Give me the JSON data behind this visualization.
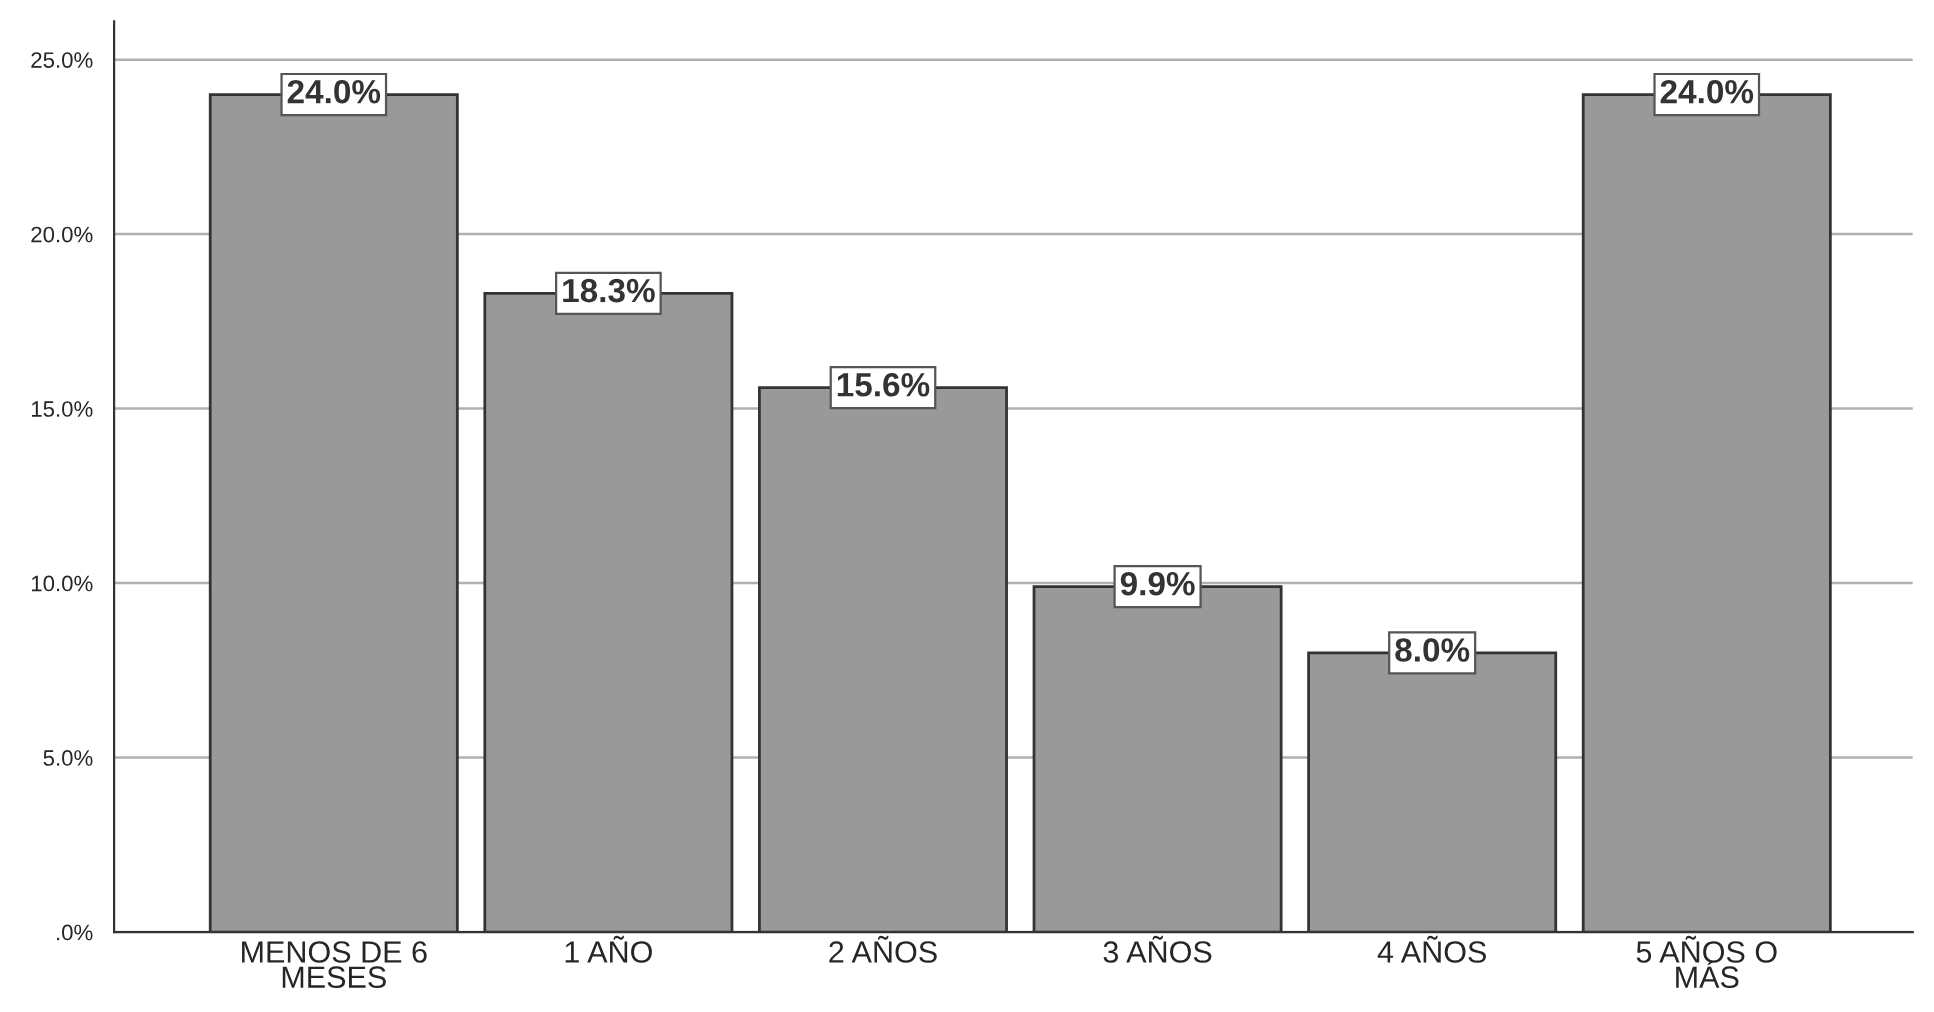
{
  "chart_data": {
    "type": "bar",
    "categories": [
      "MENOS DE 6\nMESES",
      "1 AÑO",
      "2 AÑOS",
      "3 AÑOS",
      "4 AÑOS",
      "5 AÑOS O\nMÁS"
    ],
    "values": [
      24.0,
      18.3,
      15.6,
      9.9,
      8.0,
      24.0
    ],
    "value_labels": [
      "24.0%",
      "18.3%",
      "15.6%",
      "9.9%",
      "8.0%",
      "24.0%"
    ],
    "color": "#999999",
    "ylim": [
      0,
      26.1
    ],
    "yticks": [
      {
        "value": 0,
        "label": ".0%"
      },
      {
        "value": 5,
        "label": "5.0%"
      },
      {
        "value": 10,
        "label": "10.0%"
      },
      {
        "value": 15,
        "label": "15.0%"
      },
      {
        "value": 20,
        "label": "20.0%"
      },
      {
        "value": 25,
        "label": "25.0%"
      }
    ],
    "grid": "y",
    "legend": false
  }
}
